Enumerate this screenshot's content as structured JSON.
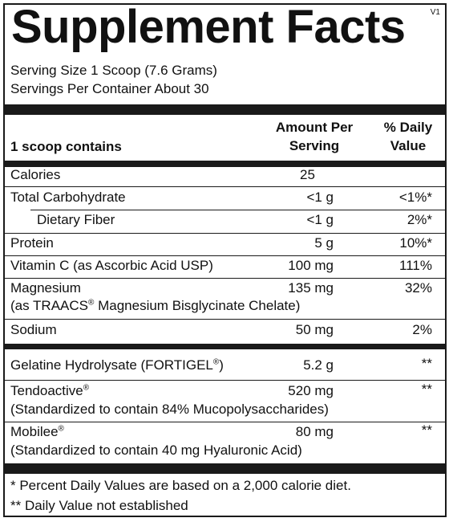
{
  "title": "Supplement Facts",
  "version": "V1",
  "serving_size": "Serving Size 1 Scoop (7.6 Grams)",
  "servings_per_container": "Servings Per Container About 30",
  "header": {
    "contains": "1 scoop contains",
    "amount_line1": "Amount Per",
    "amount_line2": "Serving",
    "dv_line1": "% Daily",
    "dv_line2": "Value"
  },
  "rows": [
    {
      "name": "Calories",
      "amount": "25",
      "dv": ""
    },
    {
      "name": "Total Carbohydrate",
      "amount": "<1 g",
      "dv": "<1%*"
    },
    {
      "name": "Dietary Fiber",
      "amount": "<1 g",
      "dv": "2%*"
    },
    {
      "name": "Protein",
      "amount": "5 g",
      "dv": "10%*"
    },
    {
      "name": "Vitamin C (as Ascorbic Acid USP)",
      "amount": "100 mg",
      "dv": "111%"
    },
    {
      "name": "Magnesium",
      "detail_pre": "(as TRAACS",
      "detail_reg": "®",
      "detail_post": " Magnesium Bisglycinate Chelate)",
      "amount": "135 mg",
      "dv": "32%"
    },
    {
      "name": "Sodium",
      "amount": "50 mg",
      "dv": "2%"
    },
    {
      "name_pre": "Gelatine Hydrolysate (FORTIGEL",
      "name_reg": "®",
      "name_post": ")",
      "amount": "5.2 g",
      "dv": "**"
    },
    {
      "name": "Tendoactive",
      "name_reg": "®",
      "detail": "(Standardized to contain 84% Mucopolysaccharides)",
      "amount": "520 mg",
      "dv": "**"
    },
    {
      "name": "Mobilee",
      "name_reg": "®",
      "detail": "(Standardized to contain 40 mg Hyaluronic Acid)",
      "amount": "80 mg",
      "dv": "**"
    }
  ],
  "footnotes": [
    "* Percent Daily Values are based on a 2,000 calorie diet.",
    "** Daily Value not established"
  ]
}
